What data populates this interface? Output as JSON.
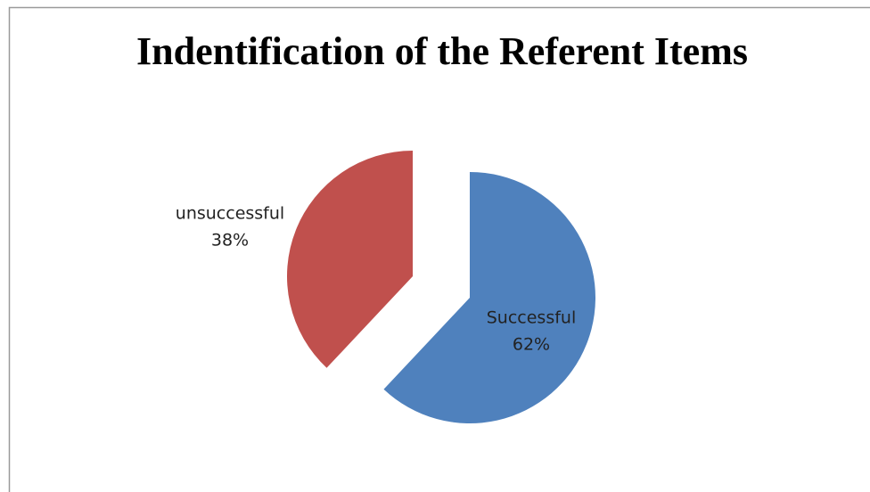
{
  "chart_data": {
    "type": "pie",
    "title": "Indentification of the Referent Items",
    "categories": [
      "Successful",
      "unsuccessful"
    ],
    "values": [
      62,
      38
    ],
    "value_labels": [
      "62%",
      "38%"
    ],
    "colors": [
      "#4f81bd",
      "#c0504d"
    ]
  }
}
